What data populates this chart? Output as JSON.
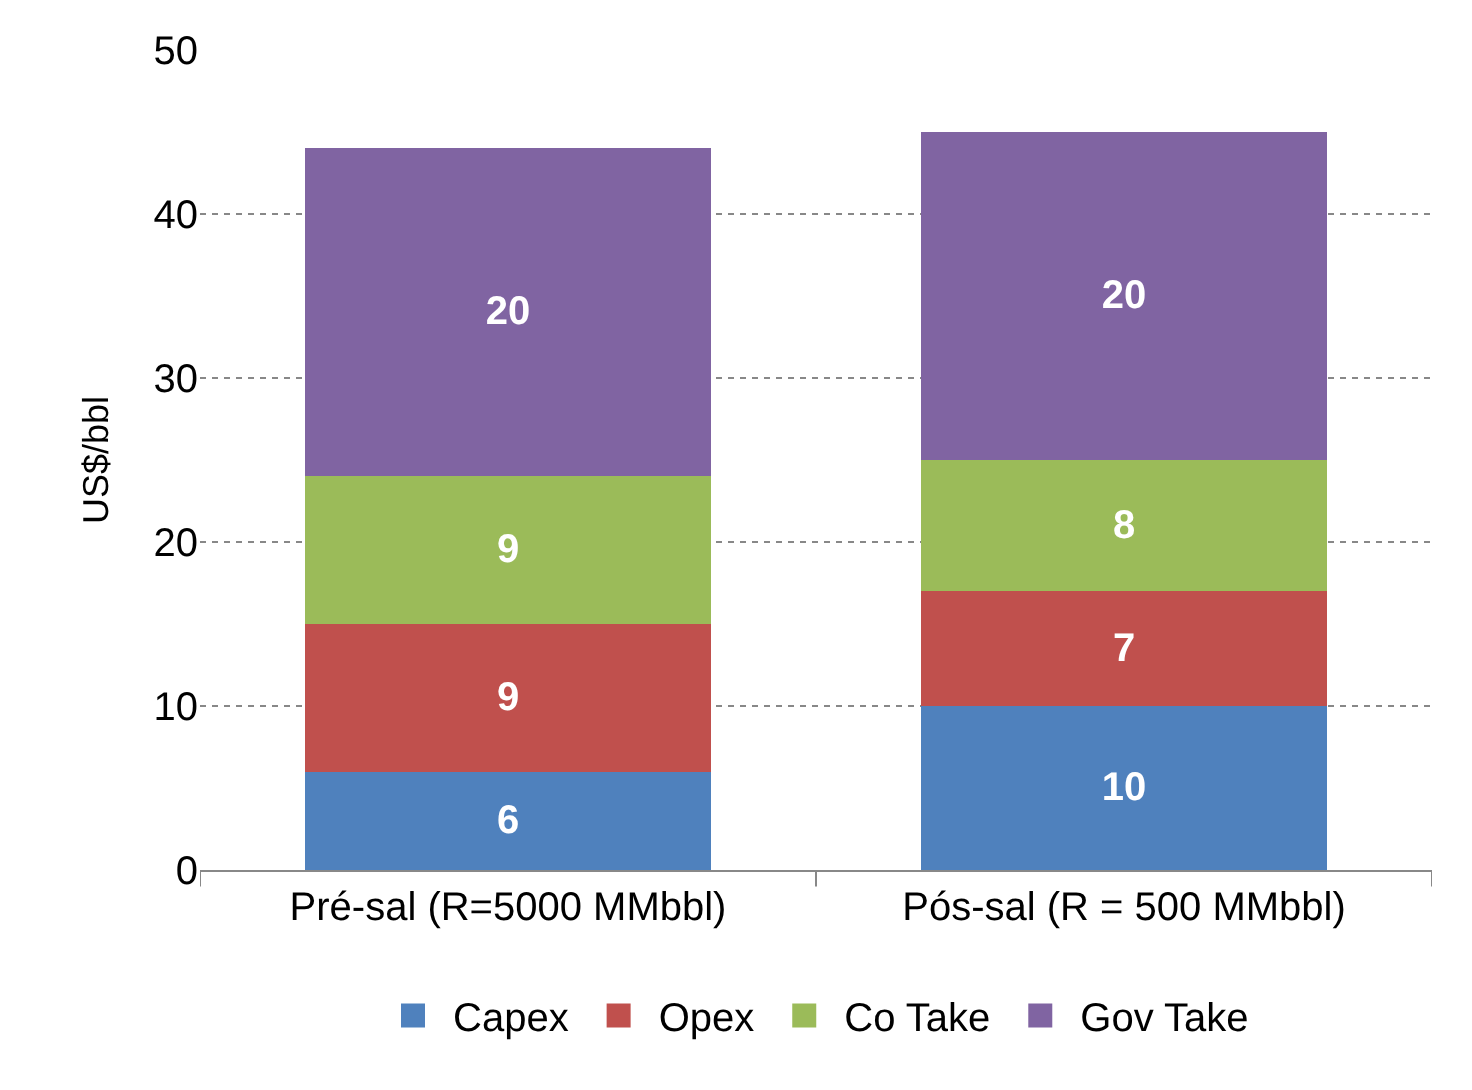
{
  "chart_data": {
    "type": "bar",
    "stacked": true,
    "ylabel": "US$/bbl",
    "categories": [
      "Pré-sal (R=5000 MMbbl)",
      "Pós-sal (R = 500 MMbbl)"
    ],
    "series": [
      {
        "name": "Capex",
        "color": "#4f81bd",
        "values": [
          6,
          10
        ]
      },
      {
        "name": "Opex",
        "color": "#c0504d",
        "values": [
          9,
          7
        ]
      },
      {
        "name": "Co Take",
        "color": "#9bbb59",
        "values": [
          9,
          8
        ]
      },
      {
        "name": "Gov Take",
        "color": "#8064a2",
        "values": [
          20,
          20
        ]
      }
    ],
    "ylim": [
      0,
      50
    ],
    "yticks": [
      0,
      10,
      20,
      30,
      40,
      50
    ],
    "grid": "y",
    "legend": "bottom",
    "data_labels": true
  }
}
